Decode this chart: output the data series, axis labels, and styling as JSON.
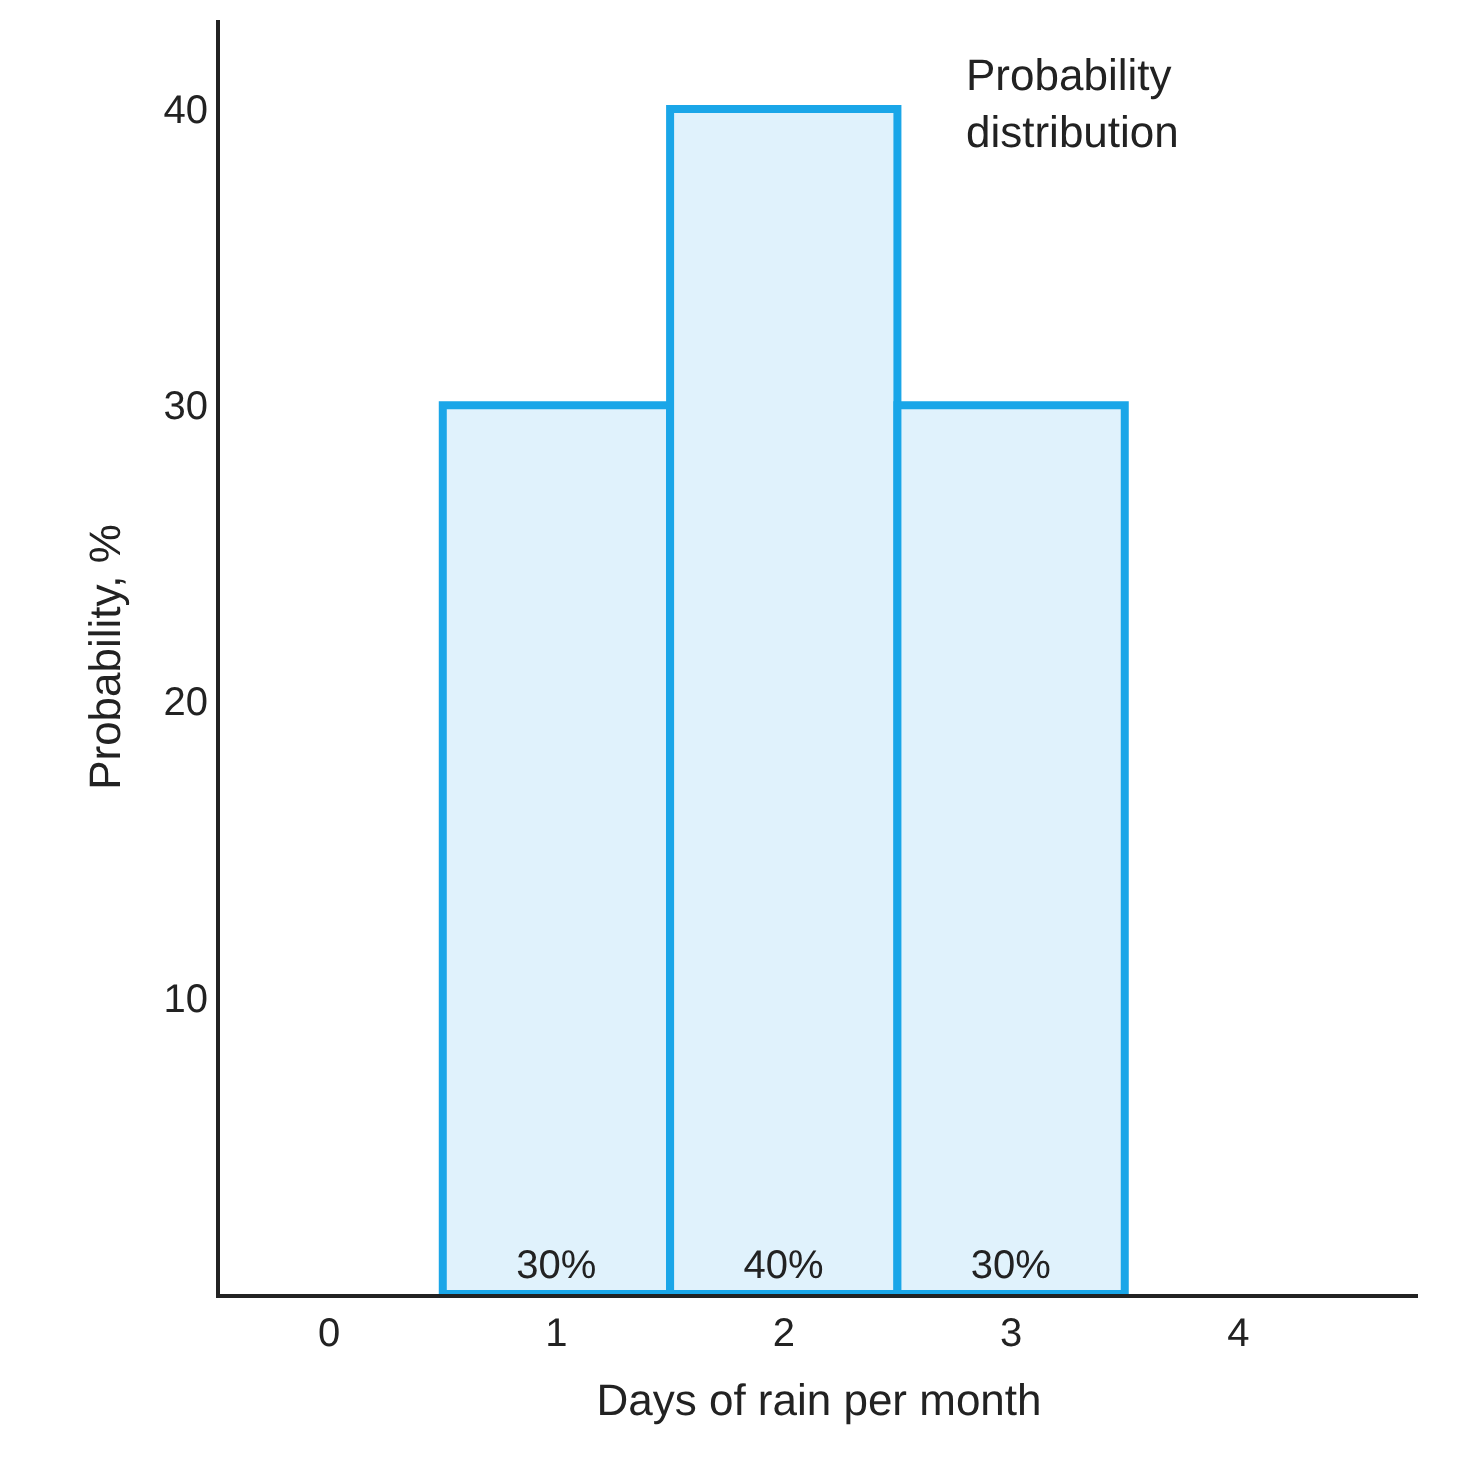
{
  "chart_data": {
    "type": "bar",
    "x": [
      1,
      2,
      3
    ],
    "values": [
      30,
      40,
      30
    ],
    "color": "#e0f2fc",
    "value_labels": [
      "30%",
      "40%",
      "30%"
    ],
    "xlabel": "Days of rain per month",
    "ylabel": "Probability, %",
    "annotations": [
      "Probability\ndistribution"
    ],
    "xlim": [
      -0.48,
      4.79
    ],
    "xticks": [
      0,
      1,
      2,
      3,
      4
    ],
    "ylim": [
      0,
      43
    ],
    "yticks": [
      10,
      20,
      30,
      40
    ]
  }
}
